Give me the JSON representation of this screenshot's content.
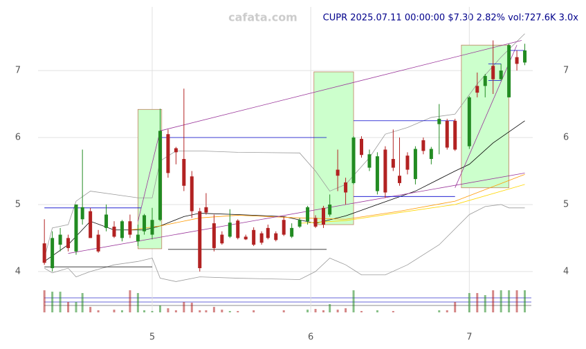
{
  "chart_data": {
    "type": "candlestick",
    "title": "CUPR 2025.07.11 00:00:00 $7.30 2.82% vol:727.6K 3.0x",
    "watermark": "cafata.com",
    "xlim": [
      4.28,
      7.4
    ],
    "xticks": [
      5,
      6,
      7
    ],
    "ylim": [
      3.39,
      7.95
    ],
    "yticks": [
      4,
      5,
      6,
      7
    ],
    "grid": true,
    "up_color": "#228b22",
    "down_color": "#b22222",
    "x": [
      4.32,
      4.37,
      4.42,
      4.47,
      4.52,
      4.56,
      4.61,
      4.66,
      4.71,
      4.76,
      4.81,
      4.86,
      4.91,
      4.95,
      5.0,
      5.05,
      5.1,
      5.15,
      5.2,
      5.25,
      5.3,
      5.34,
      5.39,
      5.44,
      5.49,
      5.54,
      5.59,
      5.64,
      5.69,
      5.73,
      5.78,
      5.83,
      5.88,
      5.93,
      5.98,
      6.03,
      6.08,
      6.12,
      6.17,
      6.22,
      6.27,
      6.32,
      6.37,
      6.42,
      6.47,
      6.52,
      6.56,
      6.61,
      6.66,
      6.71,
      6.76,
      6.81,
      6.86,
      6.91,
      7.0,
      7.05,
      7.1,
      7.15,
      7.2,
      7.25,
      7.3,
      7.35
    ],
    "open": [
      4.42,
      4.05,
      4.4,
      4.5,
      4.3,
      4.78,
      4.9,
      4.55,
      4.65,
      4.67,
      4.5,
      4.75,
      4.45,
      4.6,
      4.55,
      4.77,
      6.05,
      5.84,
      5.68,
      5.42,
      4.9,
      4.96,
      4.72,
      4.55,
      4.52,
      4.76,
      4.52,
      4.62,
      4.57,
      4.65,
      4.57,
      4.77,
      4.52,
      4.67,
      4.75,
      4.8,
      4.95,
      4.85,
      5.52,
      5.33,
      5.32,
      5.98,
      5.55,
      5.2,
      5.82,
      5.68,
      5.43,
      5.73,
      5.38,
      5.96,
      5.68,
      6.2,
      6.25,
      6.25,
      5.87,
      6.77,
      6.77,
      7.07,
      6.87,
      6.6,
      7.2,
      7.12
    ],
    "high": [
      4.78,
      4.6,
      4.65,
      4.55,
      5.0,
      5.82,
      4.95,
      4.62,
      5.0,
      4.75,
      4.77,
      4.85,
      4.7,
      4.86,
      4.95,
      6.43,
      6.12,
      5.86,
      6.73,
      5.5,
      4.95,
      5.17,
      4.85,
      4.6,
      4.93,
      4.78,
      4.55,
      4.66,
      4.6,
      4.7,
      4.6,
      4.82,
      4.72,
      4.8,
      4.98,
      4.84,
      4.98,
      5.15,
      5.82,
      5.4,
      6.02,
      6.02,
      5.82,
      5.78,
      5.87,
      6.12,
      6.0,
      5.78,
      5.87,
      6.0,
      5.86,
      6.5,
      6.28,
      6.28,
      6.62,
      6.97,
      6.95,
      7.45,
      7.1,
      7.4,
      7.3,
      7.4
    ],
    "low": [
      4.1,
      4.0,
      4.3,
      4.3,
      4.25,
      4.7,
      4.5,
      4.28,
      4.6,
      4.5,
      4.45,
      4.5,
      4.38,
      4.55,
      4.48,
      4.75,
      5.4,
      5.6,
      5.2,
      4.8,
      4.0,
      4.85,
      4.3,
      4.4,
      4.5,
      4.48,
      4.47,
      4.38,
      4.4,
      4.48,
      4.45,
      4.53,
      4.5,
      4.65,
      4.7,
      4.65,
      4.65,
      4.82,
      5.2,
      5.0,
      5.3,
      5.7,
      5.5,
      5.15,
      5.1,
      5.5,
      5.28,
      5.45,
      5.3,
      5.75,
      5.6,
      5.75,
      5.82,
      5.8,
      5.83,
      6.6,
      6.6,
      6.65,
      6.85,
      6.6,
      7.0,
      7.08
    ],
    "close": [
      4.13,
      4.5,
      4.55,
      4.35,
      5.0,
      4.96,
      4.5,
      4.3,
      4.85,
      4.52,
      4.75,
      4.55,
      4.55,
      4.84,
      4.77,
      6.1,
      5.47,
      5.78,
      5.28,
      4.9,
      4.05,
      4.88,
      4.35,
      4.42,
      4.73,
      4.5,
      4.48,
      4.4,
      4.43,
      4.5,
      4.47,
      4.55,
      4.65,
      4.77,
      4.96,
      4.67,
      4.7,
      5.0,
      5.43,
      5.18,
      6.0,
      5.74,
      5.75,
      5.72,
      5.18,
      5.55,
      5.32,
      5.52,
      5.83,
      5.8,
      5.83,
      6.28,
      5.85,
      5.82,
      6.6,
      6.67,
      6.92,
      6.87,
      7.0,
      7.38,
      7.1,
      7.3
    ],
    "volume": [
      727,
      680,
      680,
      340,
      340,
      636,
      180,
      70,
      0,
      90,
      70,
      727,
      636,
      70,
      45,
      227,
      136,
      70,
      340,
      318,
      70,
      70,
      180,
      90,
      45,
      45,
      0,
      70,
      0,
      0,
      0,
      70,
      0,
      0,
      90,
      113,
      70,
      272,
      90,
      136,
      727,
      45,
      0,
      70,
      0,
      45,
      0,
      0,
      0,
      0,
      0,
      70,
      70,
      340,
      636,
      636,
      568,
      727,
      727,
      727,
      727,
      727.6
    ],
    "boxes": [
      {
        "x": [
          4.91,
          5.06
        ],
        "values": [
          4.34,
          6.42
        ]
      },
      {
        "x": [
          6.02,
          6.27
        ],
        "values": [
          4.7,
          6.98
        ]
      },
      {
        "x": [
          6.95,
          7.25
        ],
        "values": [
          5.25,
          7.38
        ]
      }
    ],
    "box_color": "#ccffcc",
    "lines": [
      {
        "color": "#000000",
        "x": [
          4.32,
          4.47,
          4.61,
          4.76,
          4.95,
          5.05,
          5.2,
          5.3,
          5.54,
          5.83,
          6.03,
          6.22,
          6.42,
          6.66,
          6.91,
          7.0,
          7.15,
          7.35
        ],
        "values": [
          4.15,
          4.4,
          4.75,
          4.62,
          4.62,
          4.68,
          4.82,
          4.87,
          4.85,
          4.82,
          4.72,
          4.83,
          5.0,
          5.2,
          5.5,
          5.6,
          5.92,
          6.25
        ]
      },
      {
        "color": "#999999",
        "x": [
          4.32,
          4.37,
          4.47,
          4.52,
          4.61,
          4.76,
          4.91,
          5.0,
          5.05,
          5.15,
          5.3,
          5.54,
          5.93,
          6.03,
          6.12,
          6.22,
          6.37,
          6.47,
          6.61,
          6.76,
          6.91,
          7.05,
          7.2,
          7.35
        ],
        "values": [
          4.2,
          4.65,
          4.7,
          5.05,
          5.2,
          5.15,
          5.1,
          5.1,
          5.65,
          5.8,
          5.8,
          5.78,
          5.77,
          5.5,
          5.2,
          5.3,
          5.7,
          6.05,
          6.15,
          6.3,
          6.35,
          6.8,
          7.2,
          7.55
        ]
      },
      {
        "color": "#999999",
        "x": [
          4.32,
          4.37,
          4.47,
          4.52,
          4.61,
          4.76,
          4.91,
          5.0,
          5.05,
          5.15,
          5.3,
          5.54,
          5.93,
          6.03,
          6.12,
          6.22,
          6.32,
          6.47,
          6.61,
          6.81,
          7.0,
          7.1,
          7.2,
          7.25,
          7.35
        ],
        "values": [
          4.05,
          3.98,
          4.05,
          3.92,
          4.0,
          4.1,
          4.15,
          4.2,
          3.9,
          3.85,
          3.92,
          3.9,
          3.88,
          4.0,
          4.2,
          4.1,
          3.95,
          3.95,
          4.1,
          4.4,
          4.85,
          4.97,
          5.0,
          4.95,
          4.95
        ]
      },
      {
        "color": "#ff9900",
        "x": [
          4.86,
          5.05,
          5.3,
          5.54,
          5.93,
          6.22,
          6.56,
          6.91,
          7.35
        ],
        "values": [
          4.62,
          4.68,
          4.8,
          4.84,
          4.8,
          4.78,
          4.9,
          5.05,
          5.45
        ]
      },
      {
        "color": "#ffd700",
        "x": [
          5.93,
          6.22,
          6.56,
          6.91,
          7.35
        ],
        "values": [
          4.72,
          4.76,
          4.88,
          5.0,
          5.3
        ]
      },
      {
        "color": "#993399",
        "x": [
          5.05,
          7.33
        ],
        "values": [
          6.1,
          7.45
        ]
      },
      {
        "color": "#993399",
        "x": [
          4.47,
          7.35
        ],
        "values": [
          4.27,
          5.47
        ]
      },
      {
        "color": "#993399",
        "x": [
          4.91,
          5.05
        ],
        "values": [
          4.75,
          6.1
        ]
      },
      {
        "color": "#993399",
        "x": [
          6.91,
          7.3
        ],
        "values": [
          5.25,
          7.38
        ]
      },
      {
        "color": "#0000cc",
        "x": [
          4.32,
          4.93
        ],
        "values": [
          4.95,
          4.95
        ]
      },
      {
        "color": "#0000cc",
        "x": [
          5.06,
          6.1
        ],
        "values": [
          6.0,
          6.0
        ]
      },
      {
        "color": "#0000cc",
        "x": [
          6.27,
          6.91
        ],
        "values": [
          6.25,
          6.25
        ]
      },
      {
        "color": "#0000cc",
        "x": [
          6.27,
          6.91
        ],
        "values": [
          5.12,
          5.12
        ]
      },
      {
        "color": "#0000cc",
        "x": [
          7.12,
          7.2
        ],
        "values": [
          6.85,
          6.85
        ]
      },
      {
        "color": "#0000cc",
        "x": [
          7.12,
          7.2
        ],
        "values": [
          7.1,
          7.1
        ]
      },
      {
        "color": "#0000cc",
        "x": [
          7.26,
          7.35
        ],
        "values": [
          7.3,
          7.3
        ]
      },
      {
        "color": "#000000",
        "x": [
          4.32,
          5.0
        ],
        "values": [
          4.07,
          4.07
        ]
      },
      {
        "color": "#000000",
        "x": [
          5.1,
          6.1
        ],
        "values": [
          4.33,
          4.33
        ]
      }
    ]
  }
}
